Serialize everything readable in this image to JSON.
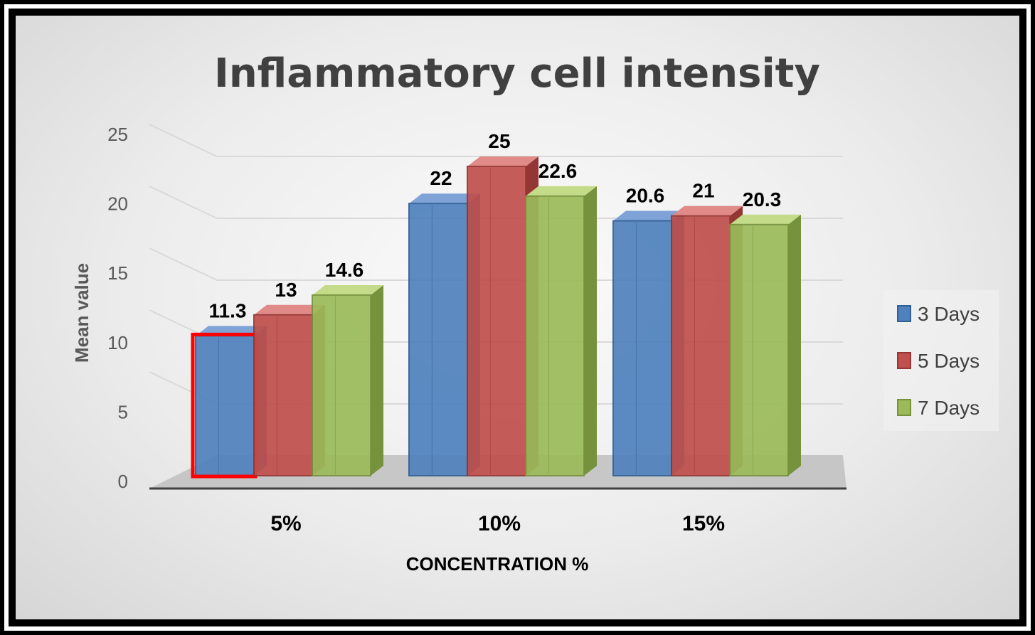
{
  "chart_data": {
    "type": "bar",
    "title": "Inflammatory cell intensity",
    "xlabel": "CONCENTRATION %",
    "ylabel": "Mean value",
    "categories": [
      "5%",
      "10%",
      "15%"
    ],
    "series": [
      {
        "name": "3 Days",
        "values": [
          11.3,
          22,
          20.6
        ],
        "labels": [
          "11.3",
          "22",
          "20.6"
        ]
      },
      {
        "name": "5 Days",
        "values": [
          13,
          25,
          21
        ],
        "labels": [
          "13",
          "25",
          "21"
        ]
      },
      {
        "name": "7 Days",
        "values": [
          14.6,
          22.6,
          20.3
        ],
        "labels": [
          "14.6",
          "22.6",
          "20.3"
        ]
      }
    ],
    "ylim": [
      0,
      25
    ],
    "yticks": [
      "0",
      "5",
      "10",
      "15",
      "20",
      "25"
    ],
    "grid": true,
    "legend": "right",
    "highlight": {
      "series": "3 Days",
      "category": "5%"
    }
  },
  "colors": {
    "series": [
      "#4f81bd",
      "#c0504d",
      "#9bbb59"
    ],
    "series_light": [
      "#7fa3d6",
      "#e08b88",
      "#c4dc8a"
    ],
    "series_dark": [
      "#2f5f95",
      "#943634",
      "#76923c"
    ],
    "highlight": "#ff0000",
    "floor": "#bfbfbf",
    "axis": "#404040"
  }
}
